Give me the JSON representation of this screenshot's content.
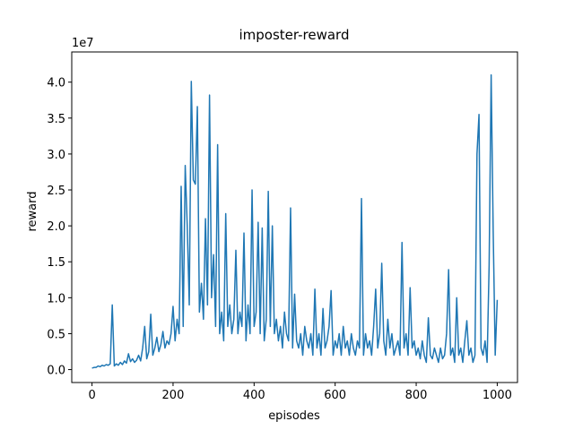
{
  "chart_data": {
    "type": "line",
    "title": "imposter-reward",
    "x_label": "episodes",
    "y_label": "reward",
    "y_offset_label": "1e7",
    "x": [
      0,
      5,
      10,
      15,
      20,
      25,
      30,
      35,
      40,
      45,
      50,
      55,
      60,
      65,
      70,
      75,
      80,
      85,
      90,
      95,
      100,
      105,
      110,
      115,
      120,
      125,
      130,
      135,
      140,
      145,
      150,
      155,
      160,
      165,
      170,
      175,
      180,
      185,
      190,
      195,
      200,
      205,
      210,
      215,
      220,
      225,
      230,
      235,
      240,
      245,
      250,
      255,
      260,
      265,
      270,
      275,
      280,
      285,
      290,
      295,
      300,
      305,
      310,
      315,
      320,
      325,
      330,
      335,
      340,
      345,
      350,
      355,
      360,
      365,
      370,
      375,
      380,
      385,
      390,
      395,
      400,
      405,
      410,
      415,
      420,
      425,
      430,
      435,
      440,
      445,
      450,
      455,
      460,
      465,
      470,
      475,
      480,
      485,
      490,
      495,
      500,
      505,
      510,
      515,
      520,
      525,
      530,
      535,
      540,
      545,
      550,
      555,
      560,
      565,
      570,
      575,
      580,
      585,
      590,
      595,
      600,
      605,
      610,
      615,
      620,
      625,
      630,
      635,
      640,
      645,
      650,
      655,
      660,
      665,
      670,
      675,
      680,
      685,
      690,
      695,
      700,
      705,
      710,
      715,
      720,
      725,
      730,
      735,
      740,
      745,
      750,
      755,
      760,
      765,
      770,
      775,
      780,
      785,
      790,
      795,
      800,
      805,
      810,
      815,
      820,
      825,
      830,
      835,
      840,
      845,
      850,
      855,
      860,
      865,
      870,
      875,
      880,
      885,
      890,
      895,
      900,
      905,
      910,
      915,
      920,
      925,
      930,
      935,
      940,
      945,
      950,
      955,
      960,
      965,
      970,
      975,
      980,
      985,
      990,
      995,
      1000
    ],
    "series": [
      {
        "name": "reward",
        "color": "#1f77b4",
        "values": [
          0.02,
          0.03,
          0.03,
          0.05,
          0.04,
          0.06,
          0.05,
          0.07,
          0.06,
          0.08,
          0.9,
          0.05,
          0.08,
          0.06,
          0.1,
          0.07,
          0.12,
          0.09,
          0.22,
          0.11,
          0.15,
          0.1,
          0.13,
          0.2,
          0.12,
          0.3,
          0.6,
          0.15,
          0.25,
          0.77,
          0.2,
          0.3,
          0.45,
          0.25,
          0.35,
          0.53,
          0.3,
          0.4,
          0.35,
          0.5,
          0.88,
          0.4,
          0.7,
          0.5,
          2.55,
          0.6,
          2.84,
          2.0,
          0.9,
          4.01,
          2.64,
          2.58,
          3.66,
          0.8,
          1.2,
          0.7,
          2.1,
          0.9,
          3.82,
          1.0,
          1.6,
          0.6,
          3.13,
          0.5,
          0.8,
          0.4,
          2.17,
          0.6,
          0.9,
          0.5,
          0.7,
          1.66,
          0.5,
          0.8,
          0.6,
          1.9,
          0.4,
          0.9,
          0.5,
          2.5,
          0.6,
          0.8,
          2.05,
          0.5,
          1.97,
          0.4,
          0.7,
          2.48,
          0.6,
          2.0,
          0.5,
          0.7,
          0.4,
          0.6,
          0.3,
          0.8,
          0.5,
          0.4,
          2.25,
          0.3,
          1.05,
          0.4,
          0.3,
          0.5,
          0.2,
          0.6,
          0.4,
          0.3,
          0.5,
          0.2,
          1.12,
          0.3,
          0.5,
          0.2,
          0.85,
          0.3,
          0.4,
          0.6,
          1.1,
          0.2,
          0.4,
          0.3,
          0.5,
          0.2,
          0.6,
          0.3,
          0.4,
          0.2,
          0.5,
          0.3,
          0.2,
          0.4,
          0.3,
          2.38,
          0.2,
          0.5,
          0.3,
          0.4,
          0.2,
          0.6,
          1.12,
          0.3,
          0.5,
          1.48,
          0.4,
          0.2,
          0.7,
          0.3,
          0.5,
          0.2,
          0.3,
          0.4,
          0.2,
          1.77,
          0.3,
          0.5,
          0.2,
          1.14,
          0.3,
          0.4,
          0.2,
          0.3,
          0.15,
          0.4,
          0.2,
          0.1,
          0.72,
          0.2,
          0.15,
          0.3,
          0.2,
          0.1,
          0.3,
          0.15,
          0.2,
          0.5,
          1.39,
          0.2,
          0.3,
          0.1,
          1.0,
          0.2,
          0.3,
          0.1,
          0.4,
          0.68,
          0.2,
          0.3,
          0.1,
          0.2,
          3.0,
          3.55,
          0.3,
          0.2,
          0.4,
          0.1,
          1.45,
          4.1,
          1.93,
          0.2,
          0.97
        ]
      }
    ],
    "xlim": [
      -50,
      1050
    ],
    "ylim": [
      -0.18,
      4.42
    ],
    "xticks": [
      0,
      200,
      400,
      600,
      800,
      1000
    ],
    "yticks": [
      {
        "value": 0,
        "label": "0.0"
      },
      {
        "value": 0.5,
        "label": "0.5"
      },
      {
        "value": 1,
        "label": "1.0"
      },
      {
        "value": 1.5,
        "label": "1.5"
      },
      {
        "value": 2,
        "label": "2.0"
      },
      {
        "value": 2.5,
        "label": "2.5"
      },
      {
        "value": 3,
        "label": "3.0"
      },
      {
        "value": 3.5,
        "label": "3.5"
      },
      {
        "value": 4,
        "label": "4.0"
      }
    ],
    "grid": false
  }
}
